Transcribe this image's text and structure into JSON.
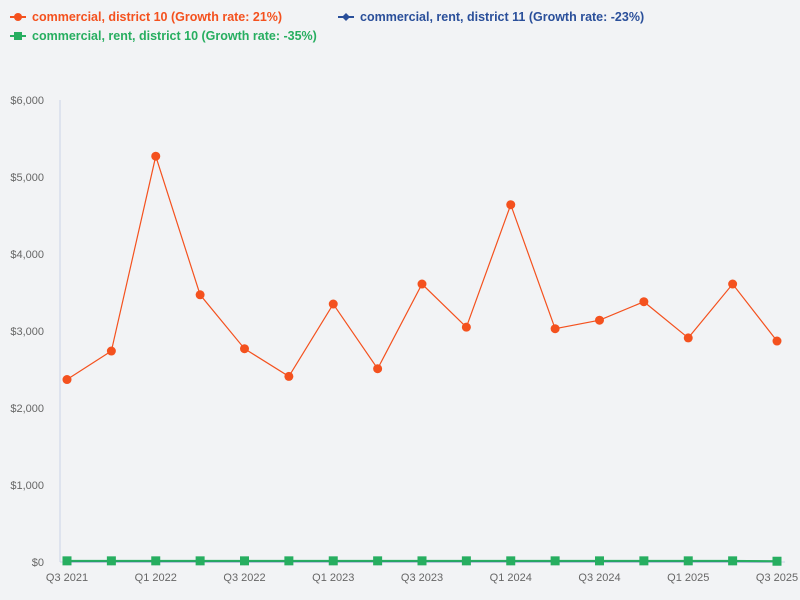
{
  "chart_data": {
    "type": "line",
    "title": "",
    "xlabel": "",
    "ylabel": "",
    "ylim": [
      0,
      6000
    ],
    "y_ticks": [
      "$0",
      "$1,000",
      "$2,000",
      "$3,000",
      "$4,000",
      "$5,000",
      "$6,000"
    ],
    "x_tick_labels": [
      "Q3 2021",
      "Q1 2022",
      "Q3 2022",
      "Q1 2023",
      "Q3 2023",
      "Q1 2024",
      "Q3 2024",
      "Q1 2025",
      "Q3 2025"
    ],
    "categories": [
      "Q3 2021",
      "Q4 2021",
      "Q1 2022",
      "Q2 2022",
      "Q3 2022",
      "Q4 2022",
      "Q1 2023",
      "Q2 2023",
      "Q3 2023",
      "Q4 2023",
      "Q1 2024",
      "Q2 2024",
      "Q3 2024",
      "Q4 2024",
      "Q1 2025",
      "Q2 2025",
      "Q3 2025"
    ],
    "grid": false,
    "legend_position": "top-left",
    "series": [
      {
        "name": "commercial, district 10 (Growth rate: 21%)",
        "color": "#f4511e",
        "marker": "circle",
        "values": [
          2370,
          2740,
          5270,
          3470,
          2770,
          2410,
          3350,
          2510,
          3610,
          3050,
          4640,
          3030,
          3140,
          3380,
          2910,
          3610,
          2870
        ]
      },
      {
        "name": "commercial, rent, district 11 (Growth rate: -23%)",
        "color": "#2a4f9a",
        "marker": "diamond",
        "values": [
          10,
          10,
          10,
          10,
          10,
          10,
          10,
          10,
          10,
          10,
          10,
          10,
          10,
          10,
          10,
          10,
          8
        ]
      },
      {
        "name": "commercial, rent, district 10 (Growth rate: -35%)",
        "color": "#27ae60",
        "marker": "square",
        "values": [
          15,
          15,
          15,
          15,
          15,
          15,
          15,
          15,
          15,
          15,
          15,
          15,
          15,
          15,
          15,
          15,
          10
        ]
      }
    ]
  },
  "legend": {
    "items": [
      {
        "label": "commercial, district 10 (Growth rate: 21%)",
        "color": "#f4511e"
      },
      {
        "label": "commercial, rent, district 11 (Growth rate: -23%)",
        "color": "#2a4f9a"
      },
      {
        "label": "commercial, rent, district 10 (Growth rate: -35%)",
        "color": "#27ae60"
      }
    ]
  }
}
